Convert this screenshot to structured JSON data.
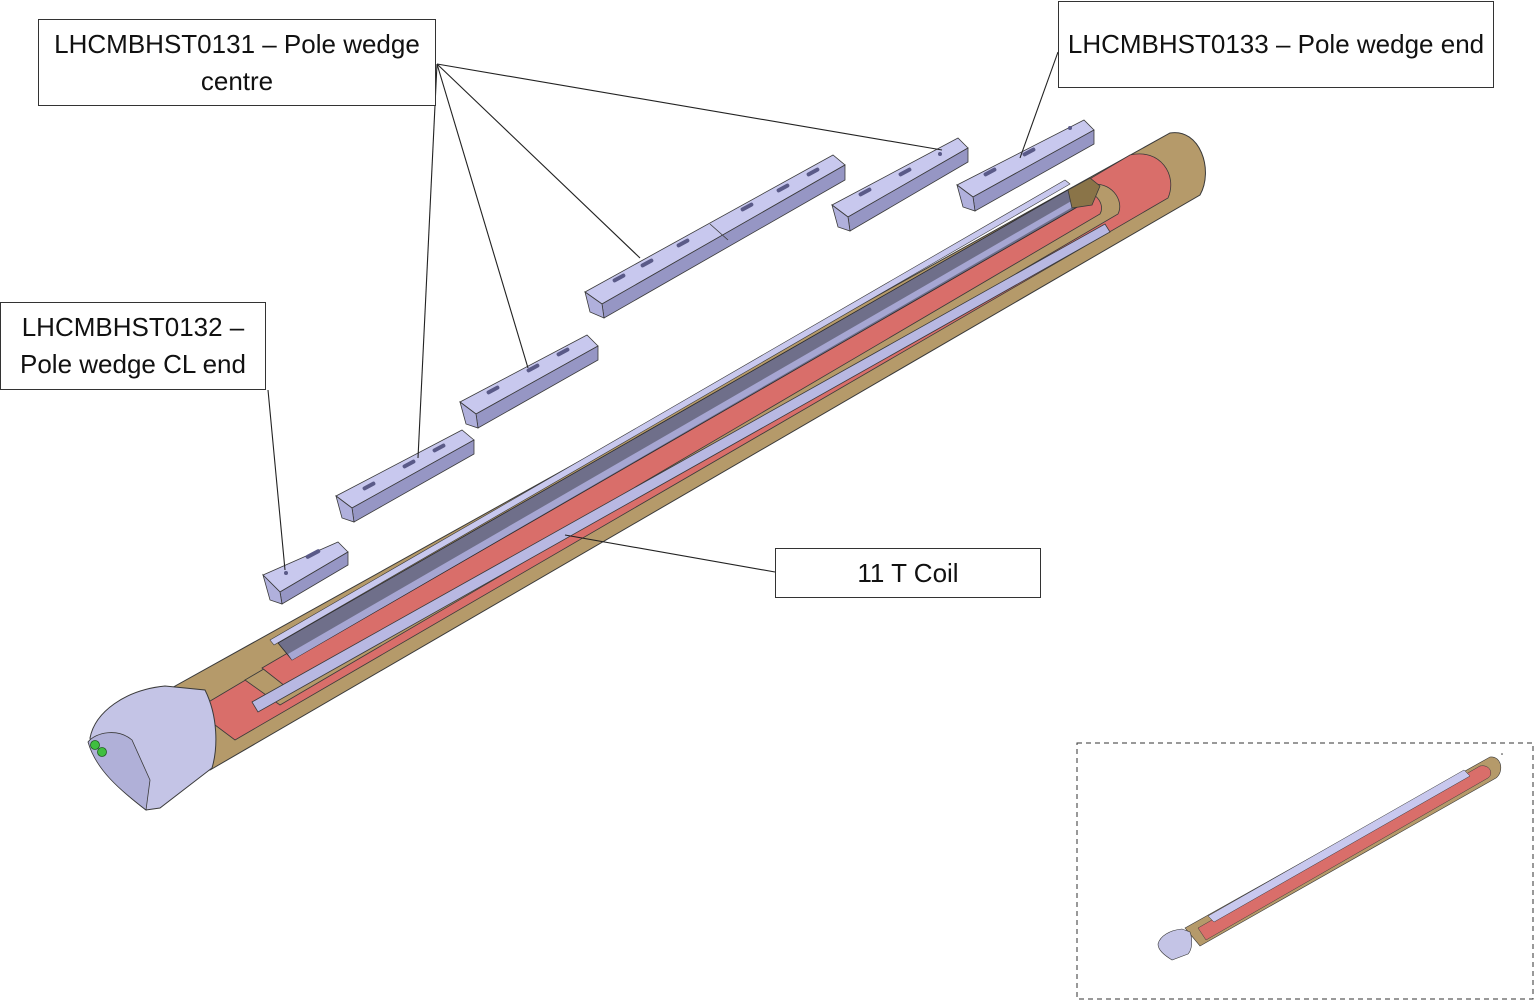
{
  "labels": {
    "center": "LHCMBHST0131 – Pole wedge centre",
    "cl_end": "LHCMBHST0132 – Pole wedge CL end",
    "end": "LHCMBHST0133 – Pole wedge end",
    "coil": "11 T Coil"
  },
  "colors": {
    "wedge": "#c8c8ee",
    "wedge_dark": "#9696c4",
    "coil_red": "#d96e6a",
    "coil_tan": "#b59a6a",
    "end_cap": "#c4c4e6",
    "outline": "#3a3a3a",
    "pad_green": "#3fbf3f"
  }
}
